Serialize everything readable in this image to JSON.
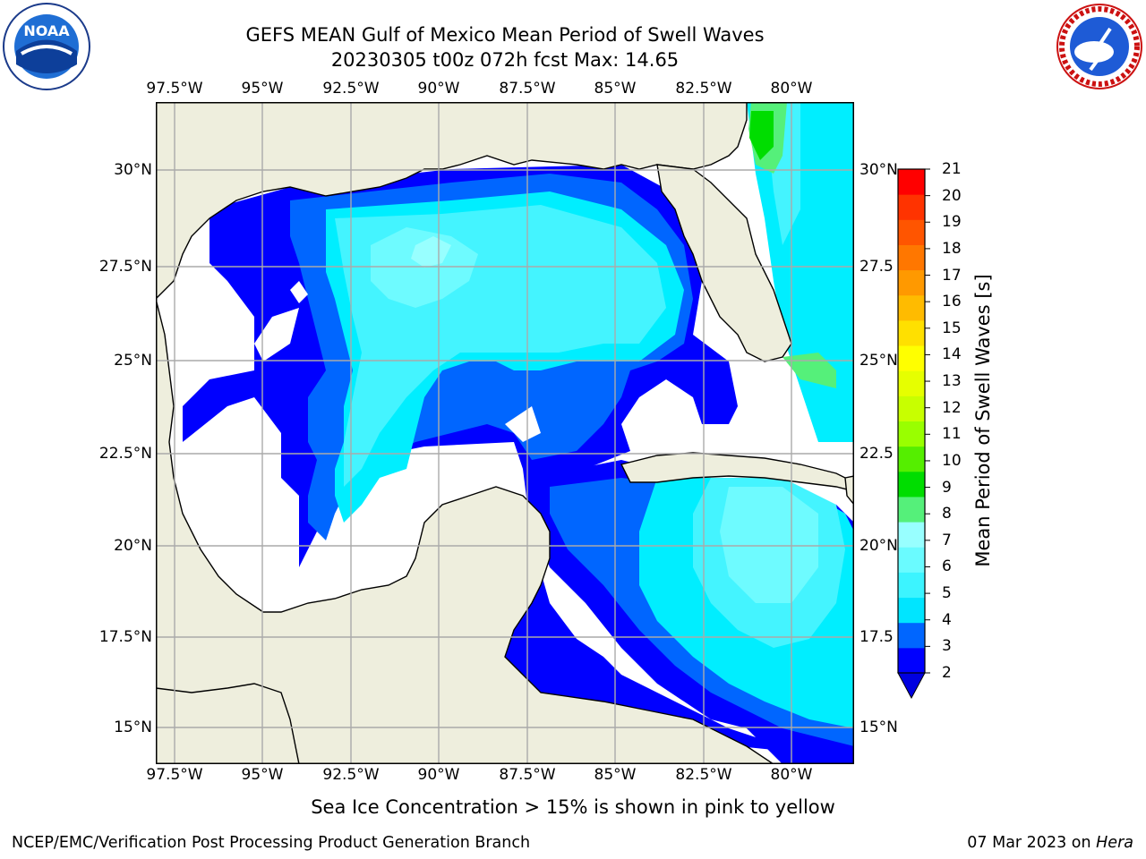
{
  "title": {
    "line1": "GEFS MEAN Gulf of Mexico Mean Period of Swell Waves",
    "line2": "20230305 t00z 072h fcst   Max: 14.65"
  },
  "axes": {
    "lon_labels": [
      "97.5°W",
      "95°W",
      "92.5°W",
      "90°W",
      "87.5°W",
      "85°W",
      "82.5°W",
      "80°W"
    ],
    "lat_labels_left": [
      "30°N",
      "27.5°N",
      "25°N",
      "22.5°N",
      "20°N",
      "17.5°N",
      "15°N"
    ],
    "lat_labels_right": [
      "30°N",
      "27.5",
      "25°N",
      "22.5",
      "20°N",
      "17.5",
      "15°N"
    ],
    "grid": true
  },
  "colorbar": {
    "label": "Mean Period of Swell Waves [s]",
    "ticks": [
      "21",
      "20",
      "19",
      "18",
      "17",
      "16",
      "15",
      "14",
      "13",
      "12",
      "11",
      "10",
      "9",
      "8",
      "7",
      "6",
      "5",
      "4",
      "3",
      "2"
    ],
    "colors_low_to_high": [
      "#0000ff",
      "#0066ff",
      "#00e5ff",
      "#3cf4ff",
      "#6afbff",
      "#98ffff",
      "#55f07a",
      "#00dd00",
      "#55ee00",
      "#99ff00",
      "#c8ff00",
      "#e6ff00",
      "#ffff00",
      "#ffe000",
      "#ffbb00",
      "#ff9900",
      "#ff7700",
      "#ff5500",
      "#ff3300",
      "#ff0000"
    ],
    "under_color": "#0000e0"
  },
  "map": {
    "land_color": "#eeeedd",
    "ocean_missing_color": "#ffffff"
  },
  "footer_note": "Sea Ice Concentration > 15% is shown in pink to yellow",
  "credits": {
    "left": "NCEP/EMC/Verification Post Processing Product Generation Branch",
    "right_date": "07 Mar 2023 on ",
    "right_host": "Hera"
  },
  "logos": {
    "noaa_text": "NOAA",
    "nws_text": "NATIONAL WEATHER SERVICE"
  }
}
